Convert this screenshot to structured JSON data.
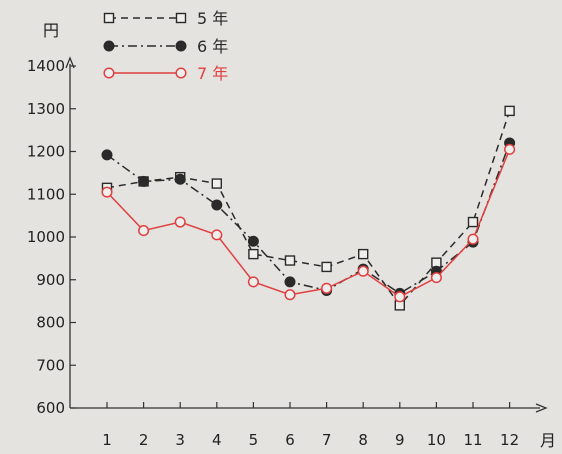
{
  "chart_data": {
    "type": "line",
    "title": "",
    "ylabel": "円",
    "xlabel": "月",
    "ylim": [
      600,
      1400
    ],
    "yticks": [
      600,
      700,
      800,
      900,
      1000,
      1100,
      1200,
      1300,
      1400
    ],
    "categories": [
      "1",
      "2",
      "3",
      "4",
      "5",
      "6",
      "7",
      "8",
      "9",
      "10",
      "11",
      "12"
    ],
    "grid": false,
    "legend_position": "top-left",
    "series": [
      {
        "name": "5 年",
        "color": "#2a2a2a",
        "line_style": "dashed",
        "marker": "open-square",
        "values": [
          1115,
          1130,
          1140,
          1125,
          960,
          945,
          930,
          960,
          840,
          940,
          1035,
          1295
        ]
      },
      {
        "name": "6 年",
        "color": "#2a2a2a",
        "line_style": "dash-dot",
        "marker": "filled-circle",
        "values": [
          1192,
          1130,
          1135,
          1075,
          990,
          895,
          875,
          925,
          868,
          920,
          988,
          1220
        ]
      },
      {
        "name": "7 年",
        "color": "#e04040",
        "line_style": "solid",
        "marker": "open-circle",
        "values": [
          1105,
          1015,
          1035,
          1005,
          895,
          865,
          880,
          920,
          860,
          905,
          995,
          1205
        ]
      }
    ]
  }
}
